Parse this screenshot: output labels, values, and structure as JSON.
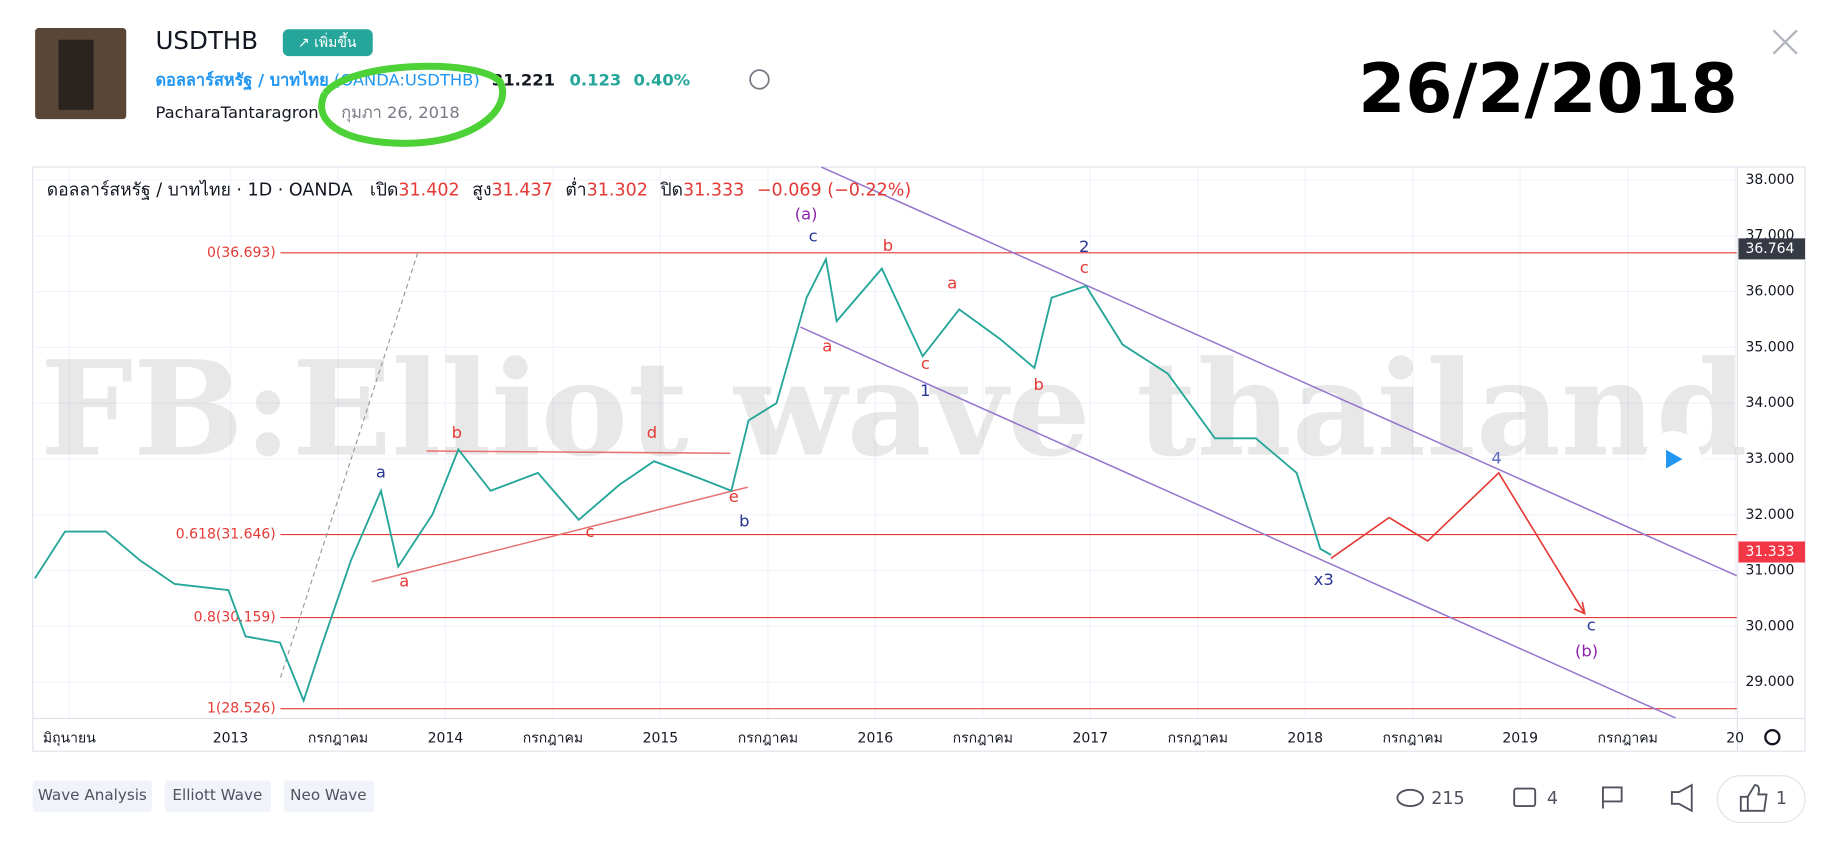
{
  "header": {
    "symbol": "USDTHB",
    "badge": "↗ เพิ่มขึ้น",
    "name": "ดอลลาร์สหรัฐ / บาทไทย",
    "exchange_symbol": "(OANDA:USDTHB)",
    "price": "31.221",
    "change": "0.123",
    "change_percent": "0.40%",
    "author": "PacharaTantaragron",
    "date": "กุมภา 26, 2018",
    "overlay_date": "26/2/2018"
  },
  "chart_data": {
    "type": "line",
    "legend_title": "ดอลลาร์สหรัฐ / บาทไทย · 1D · OANDA",
    "ohlc": [
      {
        "label": "เปิด",
        "value": "31.402"
      },
      {
        "label": "สูง",
        "value": "31.437"
      },
      {
        "label": "ต่ำ",
        "value": "31.302"
      },
      {
        "label": "ปิด",
        "value": "31.333"
      }
    ],
    "change": "−0.069 (−0.22%)",
    "watermark": "FB:Elliot wave thailand",
    "x": [
      2012.09,
      2012.23,
      2012.42,
      2012.58,
      2012.74,
      2012.99,
      2013.07,
      2013.23,
      2013.34,
      2013.42,
      2013.56,
      2013.7,
      2013.78,
      2013.94,
      2014.06,
      2014.21,
      2014.43,
      2014.62,
      2014.81,
      2014.97,
      2015.19,
      2015.33,
      2015.41,
      2015.54,
      2015.68,
      2015.77,
      2015.82,
      2016.03,
      2016.22,
      2016.39,
      2016.58,
      2016.74,
      2016.82,
      2016.98,
      2017.15,
      2017.36,
      2017.58,
      2017.77,
      2017.96,
      2018.07,
      2018.12
    ],
    "values": [
      30.86,
      31.7,
      31.7,
      31.18,
      30.76,
      30.65,
      29.82,
      29.71,
      28.67,
      29.61,
      31.18,
      32.43,
      31.07,
      32.01,
      33.17,
      32.43,
      32.75,
      31.91,
      32.54,
      32.96,
      32.64,
      32.43,
      33.69,
      34.0,
      35.89,
      36.58,
      35.47,
      36.41,
      34.84,
      35.68,
      35.15,
      34.63,
      35.89,
      36.1,
      35.05,
      34.53,
      33.37,
      33.37,
      32.75,
      31.39,
      31.28
    ],
    "color": "#26a69a",
    "projection": {
      "x": [
        2018.12,
        2018.39,
        2018.57,
        2018.9,
        2019.3
      ],
      "values": [
        31.22,
        31.95,
        31.53,
        32.75,
        30.23
      ],
      "color": "#e53935"
    },
    "levels": [
      {
        "value": 36.693,
        "label": "0(36.693)"
      },
      {
        "value": 31.646,
        "label": "0.618(31.646)"
      },
      {
        "value": 30.159,
        "label": "0.8(30.159)"
      },
      {
        "value": 28.526,
        "label": "1(28.526)"
      }
    ],
    "price_labels": [
      {
        "value": 36.764,
        "color": "#363a45"
      },
      {
        "value": 31.333,
        "color": "#f23645"
      }
    ],
    "annotations": [
      "(a)",
      "c",
      "b",
      "2",
      "c",
      "a",
      "a",
      "c",
      "1",
      "b",
      "a",
      "b",
      "d",
      "e",
      "b",
      "c",
      "a",
      "x3",
      "4",
      "c",
      "(b)"
    ],
    "xlim": [
      2012.08,
      2020.01
    ],
    "ylim": [
      28.35,
      38.23
    ],
    "xticks": [
      {
        "value": 2012.25,
        "label": "มิถุนายน"
      },
      2013,
      {
        "value": 2013.5,
        "label": "กรกฎาคม"
      },
      2014,
      {
        "value": 2014.5,
        "label": "กรกฎาคม"
      },
      2015,
      {
        "value": 2015.5,
        "label": "กรกฎาคม"
      },
      2016,
      {
        "value": 2016.5,
        "label": "กรกฎาคม"
      },
      2017,
      {
        "value": 2017.5,
        "label": "กรกฎาคม"
      },
      2018,
      {
        "value": 2018.5,
        "label": "กรกฎาคม"
      },
      2019,
      {
        "value": 2019.5,
        "label": "กรกฎาคม"
      },
      {
        "value": 2020,
        "label": "20"
      }
    ],
    "yticks": [
      {
        "value": 29,
        "label": "29.000"
      },
      {
        "value": 30,
        "label": "30.000"
      },
      {
        "value": 31,
        "label": "31.000"
      },
      {
        "value": 32,
        "label": "32.000"
      },
      {
        "value": 33,
        "label": "33.000"
      },
      {
        "value": 34,
        "label": "34.000"
      },
      {
        "value": 35,
        "label": "35.000"
      },
      {
        "value": 36,
        "label": "36.000"
      },
      {
        "value": 37,
        "label": "37.000"
      },
      {
        "value": 38,
        "label": "38.000"
      }
    ],
    "grid": true
  },
  "tags": [
    "Wave Analysis",
    "Elliott Wave",
    "Neo Wave"
  ],
  "stats": {
    "views": "215",
    "comments": "4",
    "likes": "1"
  }
}
